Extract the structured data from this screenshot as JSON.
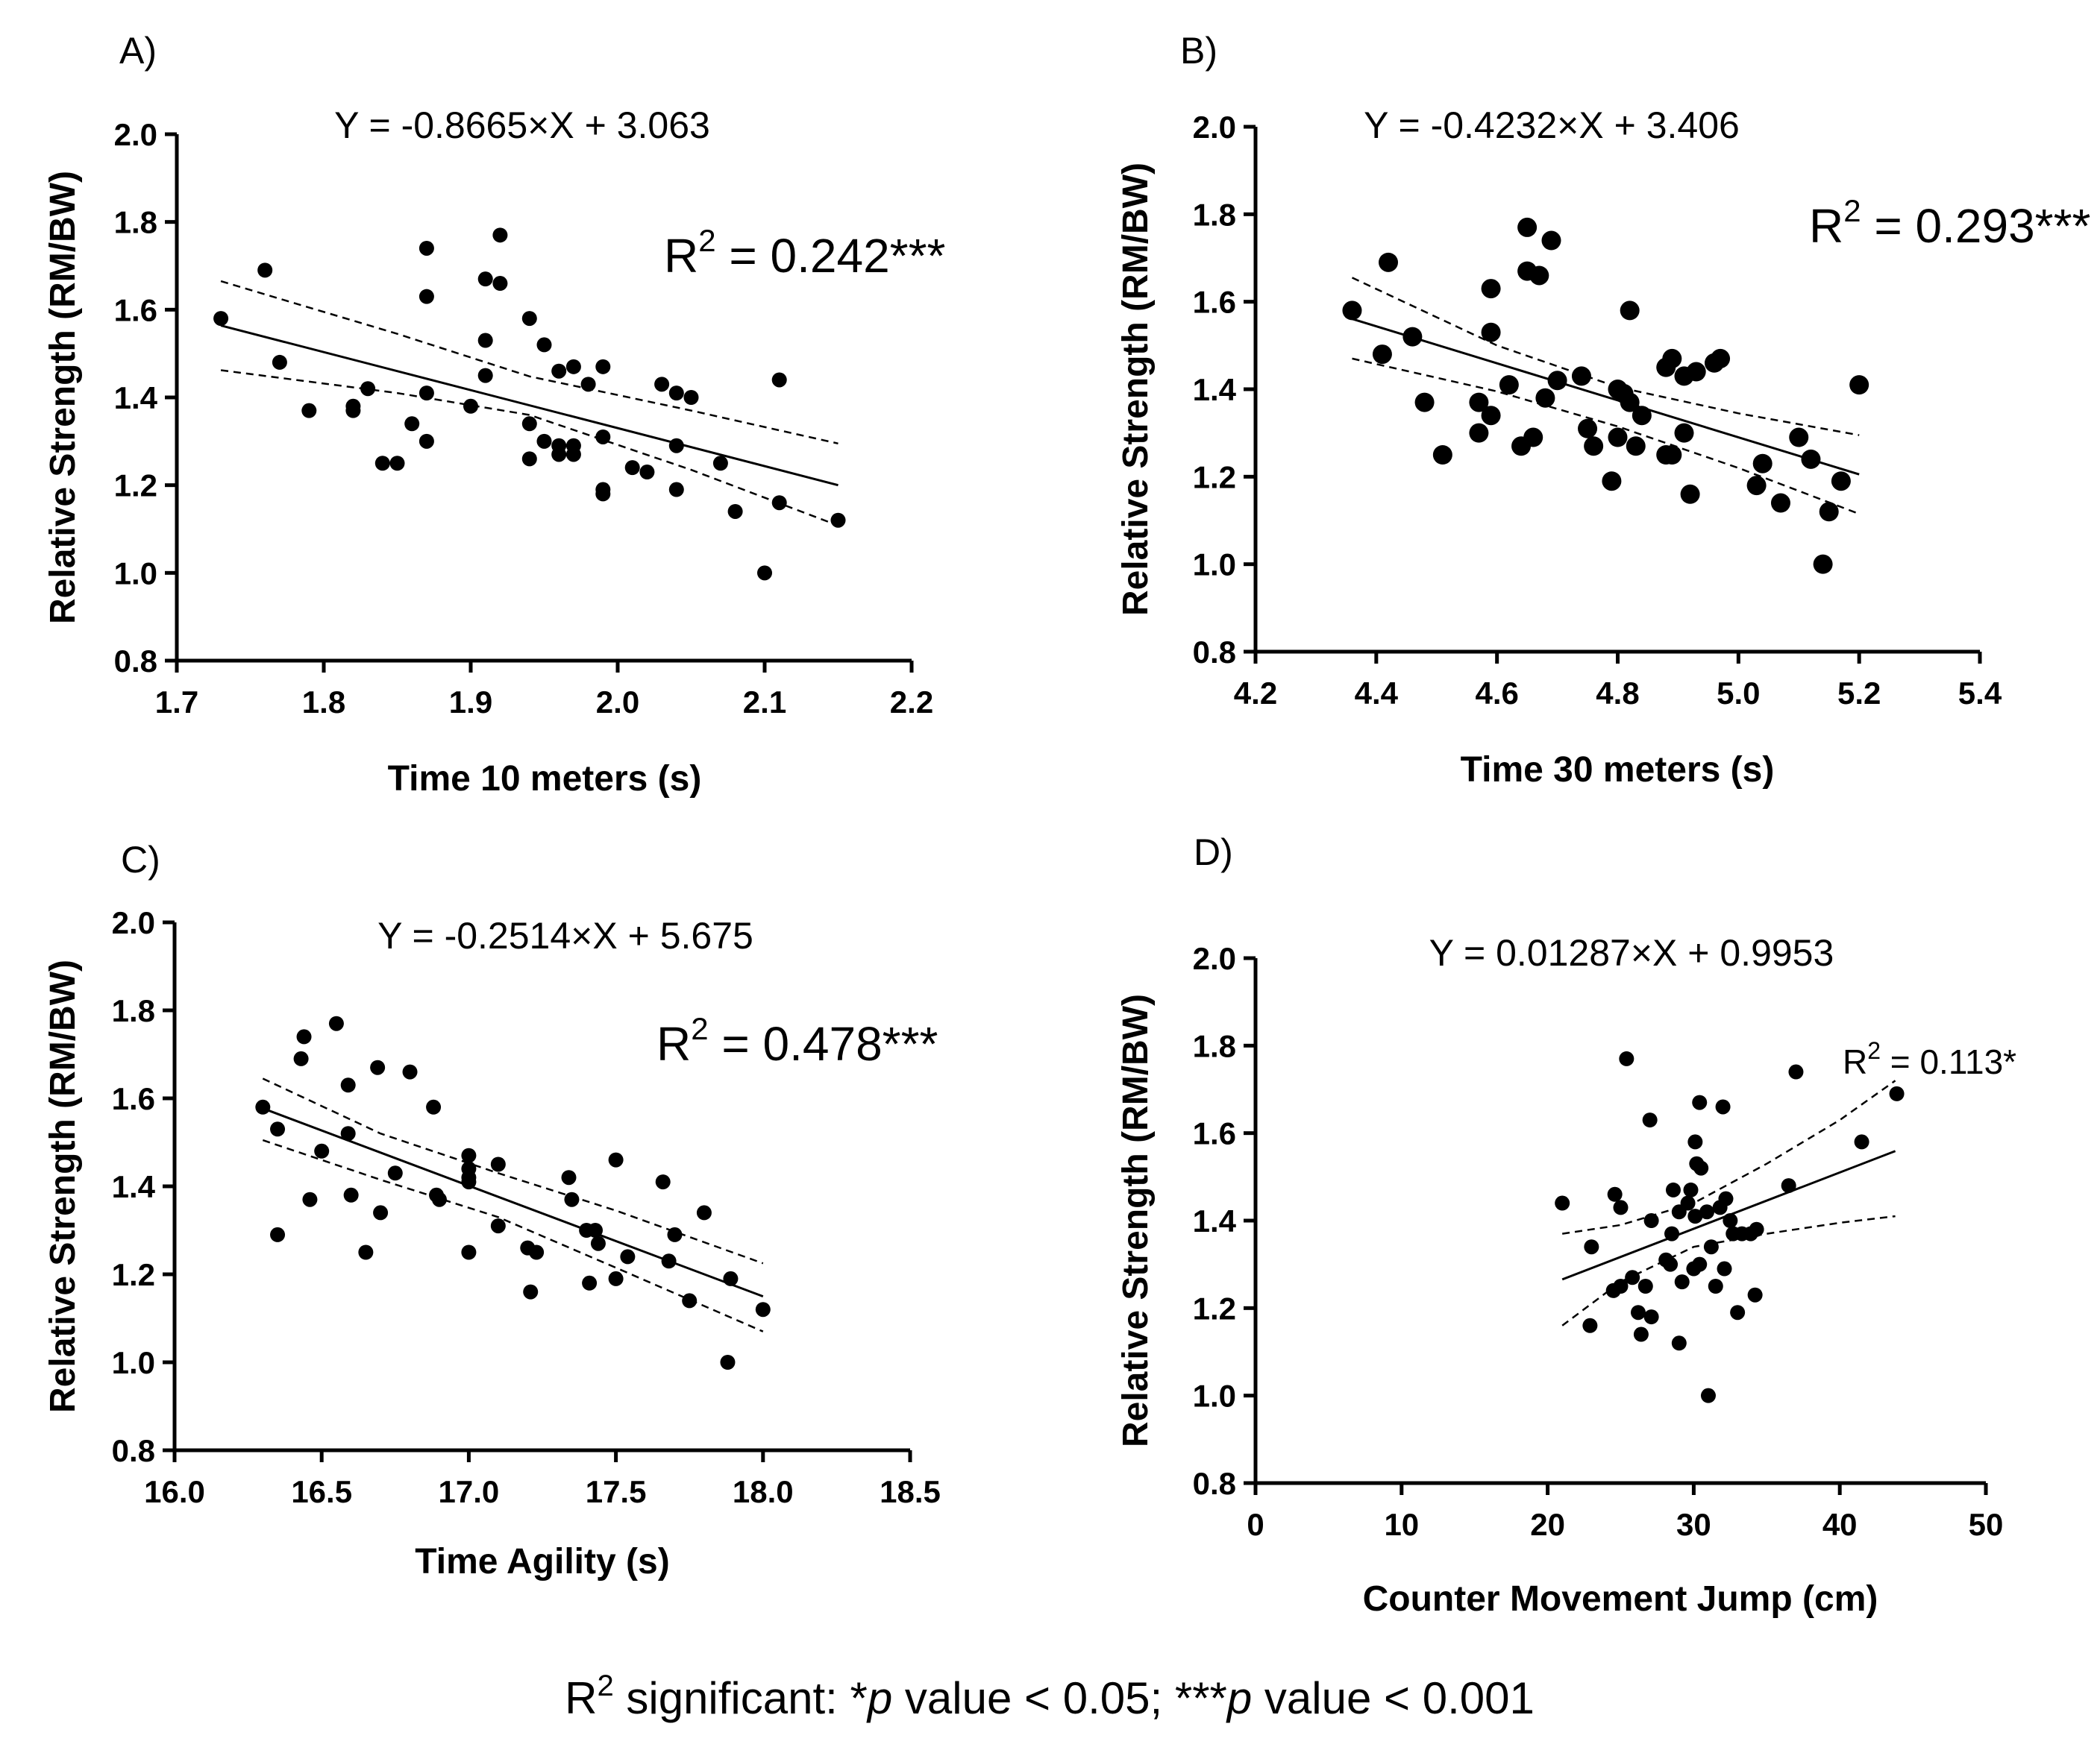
{
  "footnote": {
    "r2_text": "R",
    "sup": "2",
    "text_a": " significant: *",
    "p1": "p",
    "text_b": " value < 0.05; ***",
    "p2": "p",
    "text_c": " value < 0.001"
  },
  "chart_data": [
    {
      "panel_label": "A)",
      "type": "scatter",
      "equation": "Y = -0.8665×X + 3.063",
      "r2_prefix": "R",
      "r2_sup": "2",
      "r2_value": " = 0.242***",
      "slope": -0.8665,
      "intercept": 3.063,
      "xlabel": "Time 10 meters (s)",
      "ylabel": "Relative Strength (RM/BW)",
      "xlim": [
        1.7,
        2.2
      ],
      "ylim": [
        0.8,
        2.0
      ],
      "xticks": [
        "1.7",
        "1.8",
        "1.9",
        "2.0",
        "2.1",
        "2.2"
      ],
      "yticks": [
        "0.8",
        "1.0",
        "1.2",
        "1.4",
        "1.6",
        "1.8",
        "2.0"
      ],
      "fit_range": [
        1.73,
        2.15
      ],
      "ci_upper": [
        [
          1.73,
          1.665
        ],
        [
          1.85,
          1.545
        ],
        [
          1.94,
          1.448
        ],
        [
          2.05,
          1.37
        ],
        [
          2.15,
          1.295
        ]
      ],
      "ci_lower": [
        [
          1.73,
          1.462
        ],
        [
          1.85,
          1.41
        ],
        [
          1.94,
          1.36
        ],
        [
          2.05,
          1.235
        ],
        [
          2.15,
          1.108
        ]
      ],
      "points": [
        [
          1.73,
          1.58
        ],
        [
          1.76,
          1.69
        ],
        [
          1.77,
          1.48
        ],
        [
          1.79,
          1.37
        ],
        [
          1.82,
          1.38
        ],
        [
          1.82,
          1.37
        ],
        [
          1.83,
          1.42
        ],
        [
          1.84,
          1.25
        ],
        [
          1.85,
          1.25
        ],
        [
          1.86,
          1.34
        ],
        [
          1.87,
          1.74
        ],
        [
          1.87,
          1.63
        ],
        [
          1.87,
          1.41
        ],
        [
          1.87,
          1.3
        ],
        [
          1.9,
          1.38
        ],
        [
          1.91,
          1.67
        ],
        [
          1.91,
          1.53
        ],
        [
          1.91,
          1.45
        ],
        [
          1.92,
          1.77
        ],
        [
          1.92,
          1.66
        ],
        [
          1.94,
          1.58
        ],
        [
          1.94,
          1.34
        ],
        [
          1.94,
          1.26
        ],
        [
          1.95,
          1.52
        ],
        [
          1.95,
          1.3
        ],
        [
          1.96,
          1.46
        ],
        [
          1.96,
          1.29
        ],
        [
          1.96,
          1.27
        ],
        [
          1.97,
          1.47
        ],
        [
          1.97,
          1.29
        ],
        [
          1.97,
          1.27
        ],
        [
          1.98,
          1.43
        ],
        [
          1.99,
          1.47
        ],
        [
          1.99,
          1.31
        ],
        [
          1.99,
          1.19
        ],
        [
          1.99,
          1.18
        ],
        [
          2.01,
          1.24
        ],
        [
          2.02,
          1.23
        ],
        [
          2.03,
          1.43
        ],
        [
          2.04,
          1.41
        ],
        [
          2.04,
          1.29
        ],
        [
          2.04,
          1.19
        ],
        [
          2.05,
          1.4
        ],
        [
          2.07,
          1.25
        ],
        [
          2.08,
          1.14
        ],
        [
          2.1,
          1.0
        ],
        [
          2.11,
          1.44
        ],
        [
          2.11,
          1.16
        ],
        [
          2.15,
          1.12
        ]
      ]
    },
    {
      "panel_label": "B)",
      "type": "scatter",
      "equation": "Y = -0.4232×X + 3.406",
      "r2_prefix": "R",
      "r2_sup": "2",
      "r2_value": " = 0.293***",
      "slope": -0.4232,
      "intercept": 3.406,
      "xlabel": "Time 30 meters (s)",
      "ylabel": "Relative Strength (RM/BW)",
      "xlim": [
        4.2,
        5.4
      ],
      "ylim": [
        0.8,
        2.0
      ],
      "xticks": [
        "4.2",
        "4.4",
        "4.6",
        "4.8",
        "5.0",
        "5.2",
        "5.4"
      ],
      "yticks": [
        "0.8",
        "1.0",
        "1.2",
        "1.4",
        "1.6",
        "1.8",
        "2.0"
      ],
      "fit_range": [
        4.36,
        5.2
      ],
      "ci_upper": [
        [
          4.36,
          1.655
        ],
        [
          4.6,
          1.5
        ],
        [
          4.8,
          1.405
        ],
        [
          5.0,
          1.345
        ],
        [
          5.2,
          1.295
        ]
      ],
      "ci_lower": [
        [
          4.36,
          1.47
        ],
        [
          4.6,
          1.395
        ],
        [
          4.8,
          1.315
        ],
        [
          5.0,
          1.22
        ],
        [
          5.2,
          1.115
        ]
      ],
      "points": [
        [
          4.36,
          1.58
        ],
        [
          4.41,
          1.48
        ],
        [
          4.42,
          1.69
        ],
        [
          4.46,
          1.52
        ],
        [
          4.48,
          1.37
        ],
        [
          4.51,
          1.25
        ],
        [
          4.57,
          1.37
        ],
        [
          4.57,
          1.3
        ],
        [
          4.59,
          1.63
        ],
        [
          4.59,
          1.53
        ],
        [
          4.59,
          1.34
        ],
        [
          4.62,
          1.41
        ],
        [
          4.64,
          1.27
        ],
        [
          4.65,
          1.77
        ],
        [
          4.65,
          1.67
        ],
        [
          4.66,
          1.29
        ],
        [
          4.67,
          1.66
        ],
        [
          4.68,
          1.38
        ],
        [
          4.69,
          1.74
        ],
        [
          4.7,
          1.42
        ],
        [
          4.74,
          1.43
        ],
        [
          4.75,
          1.31
        ],
        [
          4.76,
          1.27
        ],
        [
          4.79,
          1.19
        ],
        [
          4.8,
          1.4
        ],
        [
          4.8,
          1.29
        ],
        [
          4.81,
          1.39
        ],
        [
          4.82,
          1.58
        ],
        [
          4.82,
          1.37
        ],
        [
          4.83,
          1.27
        ],
        [
          4.84,
          1.34
        ],
        [
          4.88,
          1.45
        ],
        [
          4.88,
          1.25
        ],
        [
          4.89,
          1.47
        ],
        [
          4.89,
          1.25
        ],
        [
          4.91,
          1.43
        ],
        [
          4.91,
          1.3
        ],
        [
          4.92,
          1.16
        ],
        [
          4.93,
          1.44
        ],
        [
          4.96,
          1.46
        ],
        [
          4.97,
          1.47
        ],
        [
          5.03,
          1.18
        ],
        [
          5.04,
          1.23
        ],
        [
          5.07,
          1.14
        ],
        [
          5.1,
          1.29
        ],
        [
          5.12,
          1.24
        ],
        [
          5.14,
          1.0
        ],
        [
          5.15,
          1.12
        ],
        [
          5.17,
          1.19
        ],
        [
          5.2,
          1.41
        ]
      ]
    },
    {
      "panel_label": "C)",
      "type": "scatter",
      "equation": "Y = -0.2514×X + 5.675",
      "r2_prefix": "R",
      "r2_sup": "2",
      "r2_value": " = 0.478***",
      "slope": -0.2514,
      "intercept": 5.675,
      "xlabel": "Time Agility (s)",
      "ylabel": "Relative Strength (RM/BW)",
      "xlim": [
        16.0,
        18.5
      ],
      "ylim": [
        0.8,
        2.0
      ],
      "xticks": [
        "16.0",
        "16.5",
        "17.0",
        "17.5",
        "18.0",
        "18.5"
      ],
      "yticks": [
        "0.8",
        "1.0",
        "1.2",
        "1.4",
        "1.6",
        "1.8",
        "2.0"
      ],
      "fit_range": [
        16.3,
        18.0
      ],
      "ci_upper": [
        [
          16.3,
          1.645
        ],
        [
          16.7,
          1.52
        ],
        [
          17.1,
          1.43
        ],
        [
          17.5,
          1.345
        ],
        [
          18.0,
          1.225
        ]
      ],
      "ci_lower": [
        [
          16.3,
          1.505
        ],
        [
          16.7,
          1.415
        ],
        [
          17.1,
          1.33
        ],
        [
          17.5,
          1.215
        ],
        [
          18.0,
          1.07
        ]
      ],
      "points": [
        [
          16.3,
          1.58
        ],
        [
          16.35,
          1.53
        ],
        [
          16.35,
          1.29
        ],
        [
          16.43,
          1.69
        ],
        [
          16.44,
          1.74
        ],
        [
          16.46,
          1.37
        ],
        [
          16.5,
          1.48
        ],
        [
          16.55,
          1.77
        ],
        [
          16.59,
          1.63
        ],
        [
          16.59,
          1.52
        ],
        [
          16.6,
          1.38
        ],
        [
          16.65,
          1.25
        ],
        [
          16.69,
          1.67
        ],
        [
          16.7,
          1.34
        ],
        [
          16.75,
          1.43
        ],
        [
          16.8,
          1.66
        ],
        [
          16.88,
          1.58
        ],
        [
          16.89,
          1.38
        ],
        [
          16.9,
          1.37
        ],
        [
          17.0,
          1.47
        ],
        [
          17.0,
          1.44
        ],
        [
          17.0,
          1.42
        ],
        [
          17.0,
          1.41
        ],
        [
          17.0,
          1.25
        ],
        [
          17.1,
          1.45
        ],
        [
          17.1,
          1.31
        ],
        [
          17.2,
          1.26
        ],
        [
          17.21,
          1.16
        ],
        [
          17.23,
          1.25
        ],
        [
          17.34,
          1.42
        ],
        [
          17.35,
          1.37
        ],
        [
          17.4,
          1.3
        ],
        [
          17.41,
          1.18
        ],
        [
          17.43,
          1.3
        ],
        [
          17.44,
          1.27
        ],
        [
          17.5,
          1.46
        ],
        [
          17.5,
          1.19
        ],
        [
          17.54,
          1.24
        ],
        [
          17.66,
          1.41
        ],
        [
          17.68,
          1.23
        ],
        [
          17.7,
          1.29
        ],
        [
          17.75,
          1.14
        ],
        [
          17.8,
          1.34
        ],
        [
          17.88,
          1.0
        ],
        [
          17.89,
          1.19
        ],
        [
          18.0,
          1.12
        ]
      ]
    },
    {
      "panel_label": "D)",
      "type": "scatter",
      "equation": "Y = 0.01287×X + 0.9953",
      "r2_prefix": "R",
      "r2_sup": "2",
      "r2_value": " = 0.113*",
      "slope": 0.01287,
      "intercept": 0.9953,
      "xlabel": "Counter Movement Jump (cm)",
      "ylabel": "Relative Strength (RM/BW)",
      "xlim": [
        0,
        50
      ],
      "ylim": [
        0.8,
        2.0
      ],
      "xticks": [
        "0",
        "10",
        "20",
        "30",
        "40",
        "50"
      ],
      "yticks": [
        "0.8",
        "1.0",
        "1.2",
        "1.4",
        "1.6",
        "1.8",
        "2.0"
      ],
      "fit_range": [
        21.0,
        43.8
      ],
      "ci_upper": [
        [
          21.0,
          1.37
        ],
        [
          25.0,
          1.39
        ],
        [
          30.0,
          1.44
        ],
        [
          35.0,
          1.53
        ],
        [
          40.0,
          1.63
        ],
        [
          43.8,
          1.72
        ]
      ],
      "ci_lower": [
        [
          21.0,
          1.16
        ],
        [
          25.0,
          1.26
        ],
        [
          30.0,
          1.34
        ],
        [
          35.0,
          1.37
        ],
        [
          40.0,
          1.395
        ],
        [
          43.8,
          1.41
        ]
      ],
      "points": [
        [
          21.0,
          1.44
        ],
        [
          22.9,
          1.16
        ],
        [
          23.0,
          1.34
        ],
        [
          24.5,
          1.24
        ],
        [
          24.6,
          1.46
        ],
        [
          25.0,
          1.25
        ],
        [
          25.0,
          1.43
        ],
        [
          25.4,
          1.77
        ],
        [
          25.8,
          1.27
        ],
        [
          26.2,
          1.19
        ],
        [
          26.4,
          1.14
        ],
        [
          26.7,
          1.25
        ],
        [
          27.0,
          1.63
        ],
        [
          27.1,
          1.4
        ],
        [
          27.1,
          1.18
        ],
        [
          28.1,
          1.31
        ],
        [
          28.4,
          1.3
        ],
        [
          28.5,
          1.37
        ],
        [
          28.6,
          1.47
        ],
        [
          29.0,
          1.42
        ],
        [
          29.0,
          1.12
        ],
        [
          29.2,
          1.26
        ],
        [
          29.6,
          1.44
        ],
        [
          29.8,
          1.47
        ],
        [
          30.0,
          1.29
        ],
        [
          30.1,
          1.41
        ],
        [
          30.1,
          1.58
        ],
        [
          30.2,
          1.53
        ],
        [
          30.4,
          1.3
        ],
        [
          30.4,
          1.67
        ],
        [
          30.5,
          1.52
        ],
        [
          30.9,
          1.42
        ],
        [
          31.0,
          1.0
        ],
        [
          31.2,
          1.34
        ],
        [
          31.5,
          1.25
        ],
        [
          31.8,
          1.43
        ],
        [
          32.0,
          1.66
        ],
        [
          32.1,
          1.29
        ],
        [
          32.2,
          1.45
        ],
        [
          32.5,
          1.4
        ],
        [
          32.7,
          1.37
        ],
        [
          33.0,
          1.19
        ],
        [
          33.3,
          1.37
        ],
        [
          33.9,
          1.37
        ],
        [
          34.2,
          1.23
        ],
        [
          34.3,
          1.38
        ],
        [
          36.5,
          1.48
        ],
        [
          37.0,
          1.74
        ],
        [
          41.5,
          1.58
        ],
        [
          43.9,
          1.69
        ]
      ]
    }
  ]
}
